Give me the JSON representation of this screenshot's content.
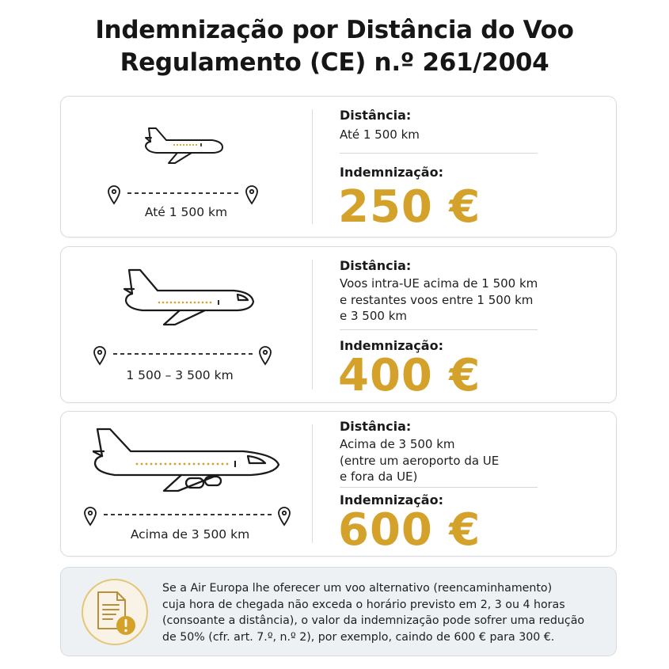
{
  "title_line1": "Indemnização por Distância do Voo",
  "title_line2": "Regulamento (CE) n.º 261/2004",
  "accent_color": "#d4a22a",
  "tiers": [
    {
      "route_label": "Até 1 500 km",
      "distance_heading": "Distância:",
      "distance_lines": [
        "Até 1 500 km"
      ],
      "compensation_heading": "Indemnização:",
      "amount": "250 €",
      "icon": "airplane-small-icon"
    },
    {
      "route_label": "1 500 – 3 500 km",
      "distance_heading": "Distância:",
      "distance_lines": [
        "Voos intra-UE acima de 1 500 km",
        "e restantes voos entre 1 500 km",
        "e 3 500 km"
      ],
      "compensation_heading": "Indemnização:",
      "amount": "400 €",
      "icon": "airplane-medium-icon"
    },
    {
      "route_label": "Acima de 3 500 km",
      "distance_heading": "Distância:",
      "distance_lines": [
        "Acima de 3 500 km",
        "(entre um aeroporto da UE",
        "e fora da UE)"
      ],
      "compensation_heading": "Indemnização:",
      "amount": "600 €",
      "icon": "airplane-large-icon"
    }
  ],
  "note": {
    "icon": "document-warning-icon",
    "lines": [
      "Se a Air Europa lhe oferecer um voo alternativo (reencaminhamento)",
      "cuja hora de chegada não exceda o horário previsto em 2, 3 ou 4 horas",
      "(consoante a distância), o valor da indemnização pode sofrer uma redução",
      "de 50% (cfr. art. 7.º, n.º 2), por exemplo, caindo de 600 € para 300 €."
    ]
  }
}
